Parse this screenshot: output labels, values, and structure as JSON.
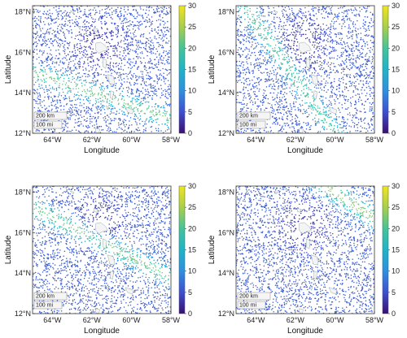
{
  "axes": {
    "xlabel": "Longitude",
    "ylabel": "Latitude",
    "xticks": [
      "64°W",
      "62°W",
      "60°W",
      "58°W"
    ],
    "yticks": [
      "18°N",
      "16°N",
      "14°N",
      "12°N"
    ]
  },
  "colorbar": {
    "ticks": [
      "30",
      "25",
      "20",
      "15",
      "10",
      "5",
      "0"
    ],
    "range": [
      0,
      30
    ],
    "colormap": [
      "#3b0f70",
      "#3e4fd0",
      "#2f8fe0",
      "#1fb4c8",
      "#45c49a",
      "#a8cf4b",
      "#f1e51d"
    ]
  },
  "scalebar": {
    "km_label": "200 km",
    "mi_label": "100 mi"
  },
  "panels": [
    {
      "id": "panel-1",
      "bands": [
        {
          "x1": -65,
          "y1": 15.0,
          "x2": -58,
          "y2": 12.7,
          "value": 22
        }
      ]
    },
    {
      "id": "panel-2",
      "bands": [
        {
          "x1": -64.6,
          "y1": 18.3,
          "x2": -60.0,
          "y2": 12.0,
          "value": 20
        }
      ]
    },
    {
      "id": "panel-3",
      "bands": [
        {
          "x1": -64.5,
          "y1": 17.0,
          "x2": -58,
          "y2": 13.8,
          "value": 22
        }
      ]
    },
    {
      "id": "panel-4",
      "bands": [
        {
          "x1": -60.5,
          "y1": 18.3,
          "x2": -58,
          "y2": 16.7,
          "value": 24
        }
      ]
    }
  ]
}
